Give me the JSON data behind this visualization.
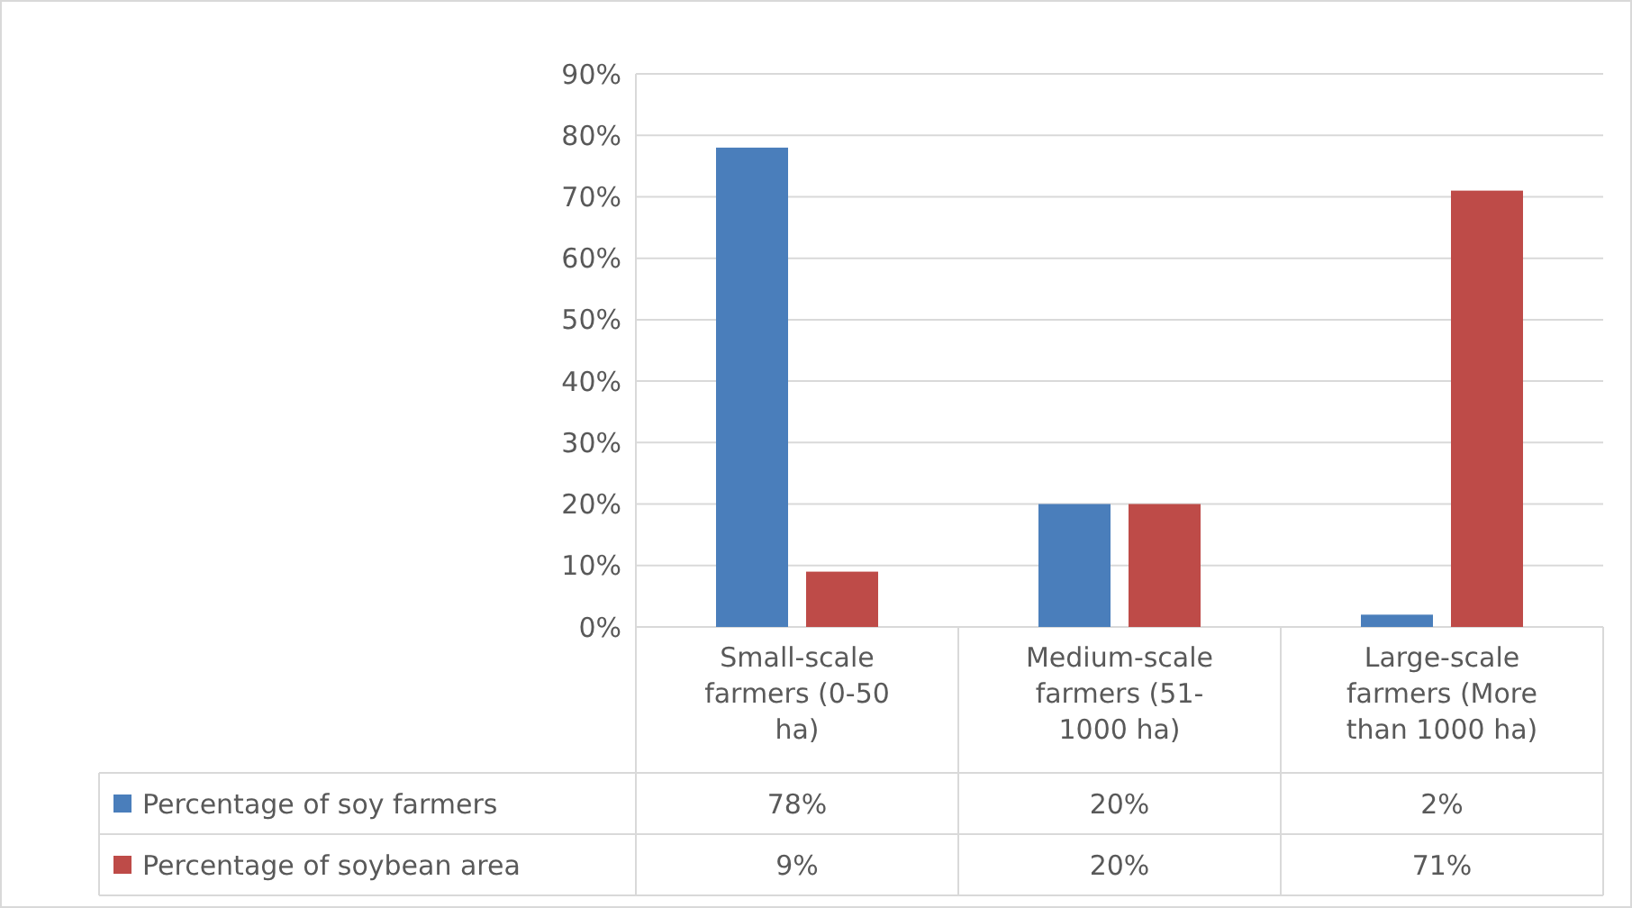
{
  "chart_data": {
    "type": "bar",
    "categories": [
      "Small-scale farmers (0-50 ha)",
      "Medium-scale farmers (51-1000 ha)",
      "Large-scale farmers (More than 1000 ha)"
    ],
    "series": [
      {
        "name": "Percentage of soy farmers",
        "color": "#4a7ebb",
        "values": [
          78,
          20,
          2
        ],
        "value_labels": [
          "78%",
          "20%",
          "2%"
        ]
      },
      {
        "name": "Percentage of soybean area",
        "color": "#be4b48",
        "values": [
          9,
          20,
          71
        ],
        "value_labels": [
          "9%",
          "20%",
          "71%"
        ]
      }
    ],
    "ylim": [
      0,
      90
    ],
    "yticks": [
      {
        "value": 0,
        "label": "0%"
      },
      {
        "value": 10,
        "label": "10%"
      },
      {
        "value": 20,
        "label": "20%"
      },
      {
        "value": 30,
        "label": "30%"
      },
      {
        "value": 40,
        "label": "40%"
      },
      {
        "value": 50,
        "label": "50%"
      },
      {
        "value": 60,
        "label": "60%"
      },
      {
        "value": 70,
        "label": "70%"
      },
      {
        "value": 80,
        "label": "80%"
      },
      {
        "value": 90,
        "label": "90%"
      }
    ],
    "grid": "y",
    "legend": "bottom left"
  }
}
